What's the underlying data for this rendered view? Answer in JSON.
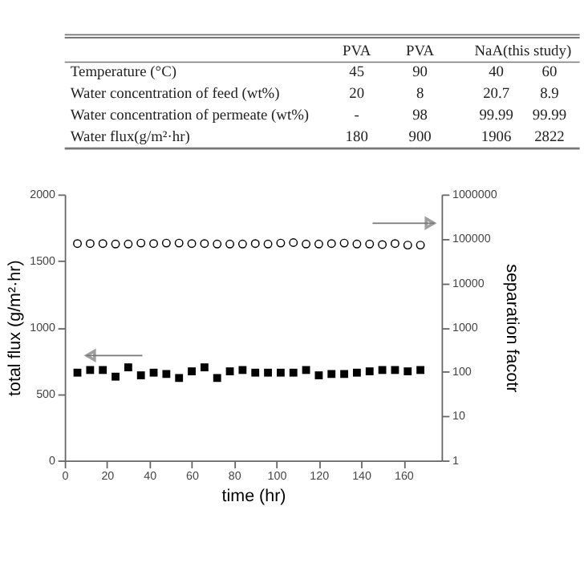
{
  "chart_data": {
    "type": "scatter",
    "xlabel": "time (hr)",
    "ylabel": "total flux (g/m²·hr)",
    "y2label": "separation facotr",
    "x": [
      6,
      12,
      18,
      24,
      30,
      36,
      42,
      48,
      54,
      60,
      66,
      72,
      78,
      84,
      90,
      96,
      102,
      108,
      114,
      120,
      126,
      132,
      138,
      144,
      150,
      156,
      162,
      168
    ],
    "series": [
      {
        "color": "#000000",
        "marker": "square",
        "values": [
          660,
          680,
          680,
          630,
          700,
          640,
          660,
          650,
          620,
          670,
          700,
          620,
          670,
          680,
          660,
          660,
          660,
          660,
          680,
          640,
          650,
          650,
          660,
          670,
          680,
          680,
          670,
          680
        ]
      },
      {
        "color": "#000000",
        "marker": "circle",
        "axis": "y2",
        "values": [
          78000,
          78000,
          78000,
          76000,
          76000,
          80000,
          78000,
          80000,
          80000,
          78000,
          78000,
          76000,
          76000,
          76000,
          78000,
          76000,
          80000,
          82000,
          76000,
          76000,
          78000,
          80000,
          76000,
          76000,
          74000,
          78000,
          72000,
          72000
        ]
      }
    ],
    "xlim": [
      0,
      178
    ],
    "xticks": [
      0,
      20,
      40,
      60,
      80,
      100,
      120,
      140,
      160
    ],
    "ylim": [
      0,
      2000
    ],
    "yticks": [
      0,
      500,
      1000,
      1500,
      2000
    ],
    "y2lim": [
      1,
      1000000
    ],
    "y2ticks": [
      1,
      10,
      100,
      1000,
      10000,
      100000,
      1000000
    ],
    "log": "y2",
    "grid": false,
    "legend": false,
    "annotations": [
      "PVA",
      "PVA",
      "NaA(this study)",
      "Temperature (°C)",
      "45",
      "90",
      "40",
      "60",
      "Water concentration of feed (wt%)",
      "20",
      "8",
      "20.7",
      "8.9",
      "Water concentration of permeate (wt%)",
      "-",
      "98",
      "99.99",
      "99.99",
      "Water flux(g/m²·hr)",
      "180",
      "900",
      "1906",
      "2822"
    ]
  }
}
